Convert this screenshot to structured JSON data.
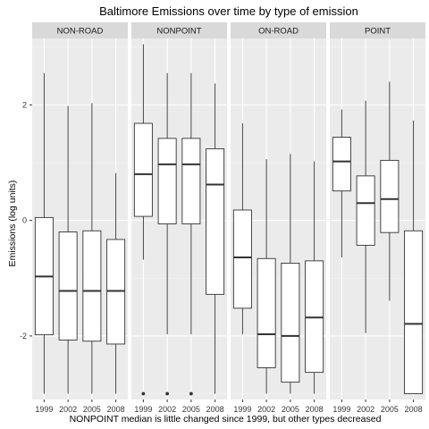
{
  "chart_data": {
    "type": "boxplot",
    "title": "Baltimore Emissions over time by type of emission",
    "xlabel": "NONPOINT median is little changed since 1999, but other types decreased",
    "ylabel": "Emissions (log units)",
    "ylim": [
      -3.1,
      3.15
    ],
    "yticks": [
      -2,
      0,
      2
    ],
    "ytick_labels": [
      "-2",
      "0",
      "2"
    ],
    "categories": [
      "1999",
      "2002",
      "2005",
      "2008"
    ],
    "facets": [
      {
        "name": "NON-ROAD",
        "boxes": [
          {
            "year": "1999",
            "whisker_low": -3.0,
            "q1": -1.98,
            "median": -0.97,
            "q3": 0.05,
            "whisker_high": 2.55,
            "outliers": []
          },
          {
            "year": "2002",
            "whisker_low": -3.0,
            "q1": -2.07,
            "median": -1.22,
            "q3": -0.2,
            "whisker_high": 1.98,
            "outliers": []
          },
          {
            "year": "2005",
            "whisker_low": -3.0,
            "q1": -2.09,
            "median": -1.22,
            "q3": -0.18,
            "whisker_high": 2.03,
            "outliers": []
          },
          {
            "year": "2008",
            "whisker_low": -3.0,
            "q1": -2.14,
            "median": -1.22,
            "q3": -0.33,
            "whisker_high": 0.82,
            "outliers": []
          }
        ]
      },
      {
        "name": "NONPOINT",
        "boxes": [
          {
            "year": "1999",
            "whisker_low": -0.68,
            "q1": 0.07,
            "median": 0.8,
            "q3": 1.68,
            "whisker_high": 3.05,
            "outliers": [
              -3.0
            ]
          },
          {
            "year": "2002",
            "whisker_low": -1.97,
            "q1": -0.06,
            "median": 0.97,
            "q3": 1.42,
            "whisker_high": 2.55,
            "outliers": [
              -3.0
            ]
          },
          {
            "year": "2005",
            "whisker_low": -1.97,
            "q1": -0.06,
            "median": 0.97,
            "q3": 1.42,
            "whisker_high": 2.55,
            "outliers": [
              -3.0
            ]
          },
          {
            "year": "2008",
            "whisker_low": -3.0,
            "q1": -1.28,
            "median": 0.62,
            "q3": 1.24,
            "whisker_high": 2.37,
            "outliers": []
          }
        ]
      },
      {
        "name": "ON-ROAD",
        "boxes": [
          {
            "year": "1999",
            "whisker_low": -1.97,
            "q1": -1.52,
            "median": -0.64,
            "q3": 0.18,
            "whisker_high": 1.68,
            "outliers": []
          },
          {
            "year": "2002",
            "whisker_low": -3.0,
            "q1": -2.55,
            "median": -1.97,
            "q3": -0.66,
            "whisker_high": 1.06,
            "outliers": []
          },
          {
            "year": "2005",
            "whisker_low": -3.0,
            "q1": -2.8,
            "median": -2.0,
            "q3": -0.74,
            "whisker_high": 1.15,
            "outliers": []
          },
          {
            "year": "2008",
            "whisker_low": -3.0,
            "q1": -2.63,
            "median": -1.68,
            "q3": -0.7,
            "whisker_high": 1.02,
            "outliers": []
          }
        ]
      },
      {
        "name": "POINT",
        "boxes": [
          {
            "year": "1999",
            "whisker_low": -0.64,
            "q1": 0.51,
            "median": 1.02,
            "q3": 1.44,
            "whisker_high": 1.92,
            "outliers": []
          },
          {
            "year": "2002",
            "whisker_low": -1.95,
            "q1": -0.43,
            "median": 0.3,
            "q3": 0.77,
            "whisker_high": 2.07,
            "outliers": []
          },
          {
            "year": "2005",
            "whisker_low": -1.39,
            "q1": -0.21,
            "median": 0.37,
            "q3": 1.04,
            "whisker_high": 2.4,
            "outliers": []
          },
          {
            "year": "2008",
            "whisker_low": -3.0,
            "q1": -3.0,
            "median": -1.79,
            "q3": -0.18,
            "whisker_high": 1.73,
            "outliers": []
          }
        ]
      }
    ],
    "grid": true,
    "legend": "none",
    "colors": {
      "panel_bg": "#ebebeb",
      "grid_major": "#ffffff",
      "grid_minor": "#f5f5f5",
      "strip_bg": "#d9d9d9",
      "box_fill": "#ffffff",
      "line": "#333333"
    }
  }
}
